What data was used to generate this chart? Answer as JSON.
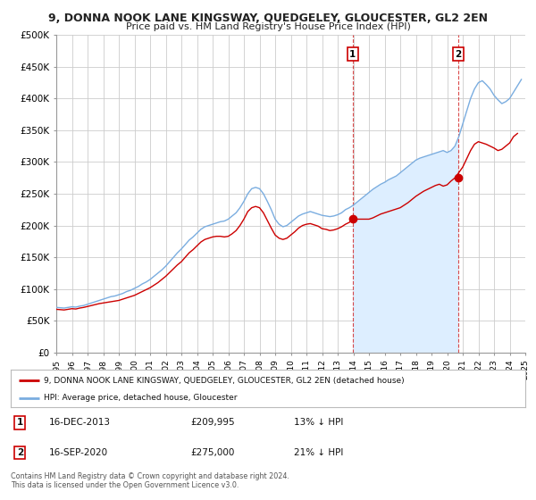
{
  "title": "9, DONNA NOOK LANE KINGSWAY, QUEDGELEY, GLOUCESTER, GL2 2EN",
  "subtitle": "Price paid vs. HM Land Registry's House Price Index (HPI)",
  "legend_line1": "9, DONNA NOOK LANE KINGSWAY, QUEDGELEY, GLOUCESTER, GL2 2EN (detached house)",
  "legend_line2": "HPI: Average price, detached house, Gloucester",
  "annotation1_label": "1",
  "annotation1_date": "16-DEC-2013",
  "annotation1_price": "£209,995",
  "annotation1_hpi": "13% ↓ HPI",
  "annotation1_year": 2013.96,
  "annotation1_value": 209995,
  "annotation2_label": "2",
  "annotation2_date": "16-SEP-2020",
  "annotation2_price": "£275,000",
  "annotation2_hpi": "21% ↓ HPI",
  "annotation2_year": 2020.71,
  "annotation2_value": 275000,
  "ylabel_ticks": [
    "£0",
    "£50K",
    "£100K",
    "£150K",
    "£200K",
    "£250K",
    "£300K",
    "£350K",
    "£400K",
    "£450K",
    "£500K"
  ],
  "ytick_values": [
    0,
    50000,
    100000,
    150000,
    200000,
    250000,
    300000,
    350000,
    400000,
    450000,
    500000
  ],
  "xmin": 1995,
  "xmax": 2025,
  "ymin": 0,
  "ymax": 500000,
  "red_color": "#cc0000",
  "blue_color": "#7aade0",
  "fill_color": "#ddeeff",
  "grid_color": "#cccccc",
  "bg_color": "#ffffff",
  "footer1": "Contains HM Land Registry data © Crown copyright and database right 2024.",
  "footer2": "This data is licensed under the Open Government Licence v3.0.",
  "hpi_years": [
    1995.0,
    1995.25,
    1995.5,
    1995.75,
    1996.0,
    1996.25,
    1996.5,
    1996.75,
    1997.0,
    1997.25,
    1997.5,
    1997.75,
    1998.0,
    1998.25,
    1998.5,
    1998.75,
    1999.0,
    1999.25,
    1999.5,
    1999.75,
    2000.0,
    2000.25,
    2000.5,
    2000.75,
    2001.0,
    2001.25,
    2001.5,
    2001.75,
    2002.0,
    2002.25,
    2002.5,
    2002.75,
    2003.0,
    2003.25,
    2003.5,
    2003.75,
    2004.0,
    2004.25,
    2004.5,
    2004.75,
    2005.0,
    2005.25,
    2005.5,
    2005.75,
    2006.0,
    2006.25,
    2006.5,
    2006.75,
    2007.0,
    2007.25,
    2007.5,
    2007.75,
    2008.0,
    2008.25,
    2008.5,
    2008.75,
    2009.0,
    2009.25,
    2009.5,
    2009.75,
    2010.0,
    2010.25,
    2010.5,
    2010.75,
    2011.0,
    2011.25,
    2011.5,
    2011.75,
    2012.0,
    2012.25,
    2012.5,
    2012.75,
    2013.0,
    2013.25,
    2013.5,
    2013.75,
    2014.0,
    2014.25,
    2014.5,
    2014.75,
    2015.0,
    2015.25,
    2015.5,
    2015.75,
    2016.0,
    2016.25,
    2016.5,
    2016.75,
    2017.0,
    2017.25,
    2017.5,
    2017.75,
    2018.0,
    2018.25,
    2018.5,
    2018.75,
    2019.0,
    2019.25,
    2019.5,
    2019.75,
    2020.0,
    2020.25,
    2020.5,
    2020.75,
    2021.0,
    2021.25,
    2021.5,
    2021.75,
    2022.0,
    2022.25,
    2022.5,
    2022.75,
    2023.0,
    2023.25,
    2023.5,
    2023.75,
    2024.0,
    2024.25,
    2024.5,
    2024.75
  ],
  "hpi_values": [
    71000,
    70500,
    70000,
    71000,
    72000,
    71500,
    73000,
    74000,
    76000,
    78000,
    80000,
    82000,
    84000,
    86000,
    88000,
    89000,
    91000,
    93000,
    96000,
    98000,
    101000,
    104000,
    108000,
    111000,
    115000,
    120000,
    125000,
    130000,
    136000,
    143000,
    150000,
    157000,
    163000,
    170000,
    177000,
    182000,
    188000,
    194000,
    198000,
    200000,
    202000,
    204000,
    206000,
    207000,
    210000,
    215000,
    220000,
    228000,
    238000,
    250000,
    258000,
    260000,
    258000,
    250000,
    238000,
    225000,
    210000,
    202000,
    198000,
    200000,
    205000,
    210000,
    215000,
    218000,
    220000,
    222000,
    220000,
    218000,
    216000,
    215000,
    214000,
    215000,
    217000,
    220000,
    225000,
    228000,
    232000,
    237000,
    242000,
    247000,
    252000,
    257000,
    261000,
    265000,
    268000,
    272000,
    275000,
    278000,
    283000,
    288000,
    293000,
    298000,
    303000,
    306000,
    308000,
    310000,
    312000,
    314000,
    316000,
    318000,
    315000,
    318000,
    325000,
    340000,
    360000,
    380000,
    400000,
    415000,
    425000,
    428000,
    422000,
    415000,
    405000,
    398000,
    392000,
    395000,
    400000,
    410000,
    420000,
    430000
  ],
  "price_years": [
    1995.0,
    1995.25,
    1995.5,
    1995.75,
    1996.0,
    1996.25,
    1996.5,
    1996.75,
    1997.0,
    1997.25,
    1997.5,
    1997.75,
    1998.0,
    1998.25,
    1998.5,
    1998.75,
    1999.0,
    1999.25,
    1999.5,
    1999.75,
    2000.0,
    2000.25,
    2000.5,
    2000.75,
    2001.0,
    2001.25,
    2001.5,
    2001.75,
    2002.0,
    2002.25,
    2002.5,
    2002.75,
    2003.0,
    2003.25,
    2003.5,
    2003.75,
    2004.0,
    2004.25,
    2004.5,
    2004.75,
    2005.0,
    2005.25,
    2005.5,
    2005.75,
    2006.0,
    2006.25,
    2006.5,
    2006.75,
    2007.0,
    2007.25,
    2007.5,
    2007.75,
    2008.0,
    2008.25,
    2008.5,
    2008.75,
    2009.0,
    2009.25,
    2009.5,
    2009.75,
    2010.0,
    2010.25,
    2010.5,
    2010.75,
    2011.0,
    2011.25,
    2011.5,
    2011.75,
    2012.0,
    2012.25,
    2012.5,
    2012.75,
    2013.0,
    2013.25,
    2013.5,
    2013.75,
    2013.96,
    2015.0,
    2015.25,
    2015.5,
    2015.75,
    2016.0,
    2016.25,
    2016.5,
    2016.75,
    2017.0,
    2017.25,
    2017.5,
    2017.75,
    2018.0,
    2018.25,
    2018.5,
    2018.75,
    2019.0,
    2019.25,
    2019.5,
    2019.75,
    2020.0,
    2020.25,
    2020.5,
    2020.71,
    2021.0,
    2021.25,
    2021.5,
    2021.75,
    2022.0,
    2022.25,
    2022.5,
    2022.75,
    2023.0,
    2023.25,
    2023.5,
    2023.75,
    2024.0,
    2024.25,
    2024.5
  ],
  "price_values": [
    68000,
    67500,
    67000,
    68000,
    69000,
    68500,
    70000,
    71000,
    72500,
    74000,
    75500,
    77000,
    78000,
    79000,
    80000,
    81000,
    82000,
    84000,
    86000,
    88000,
    90000,
    93000,
    96000,
    99000,
    102000,
    106000,
    110000,
    115000,
    120000,
    126000,
    132000,
    138000,
    143000,
    150000,
    157000,
    162000,
    168000,
    174000,
    178000,
    180000,
    182000,
    183000,
    183000,
    182000,
    183000,
    187000,
    192000,
    200000,
    210000,
    222000,
    228000,
    230000,
    228000,
    220000,
    208000,
    196000,
    185000,
    180000,
    178000,
    180000,
    185000,
    190000,
    196000,
    200000,
    202000,
    203000,
    201000,
    199000,
    195000,
    194000,
    192000,
    193000,
    195000,
    198000,
    202000,
    205000,
    209995,
    210000,
    212000,
    215000,
    218000,
    220000,
    222000,
    224000,
    226000,
    228000,
    232000,
    236000,
    241000,
    246000,
    250000,
    254000,
    257000,
    260000,
    263000,
    265000,
    262000,
    264000,
    270000,
    275000,
    282000,
    292000,
    305000,
    318000,
    328000,
    332000,
    330000,
    328000,
    325000,
    322000,
    318000,
    320000,
    325000,
    330000,
    340000,
    345000
  ]
}
